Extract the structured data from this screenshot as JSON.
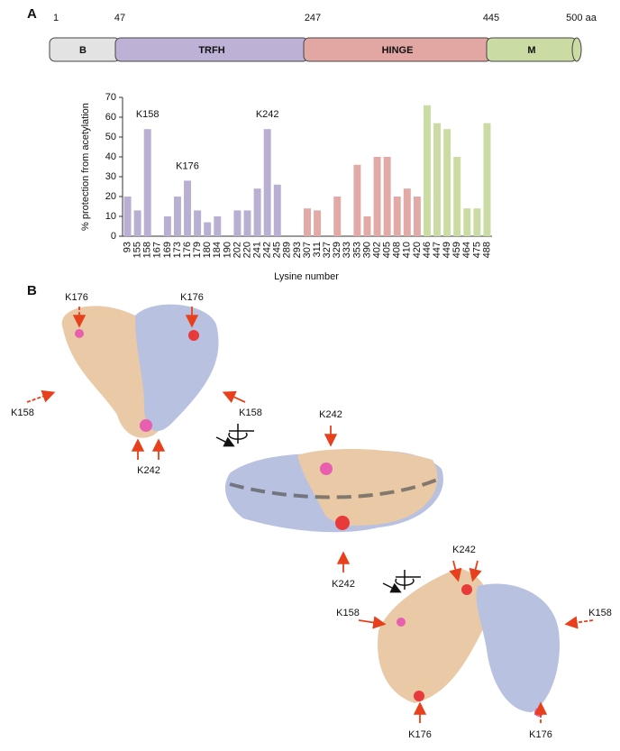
{
  "chart_data": {
    "type": "bar",
    "y_label": "% protection from acetylation",
    "x_label": "Lysine number",
    "categories": [
      "93",
      "155",
      "158",
      "167",
      "169",
      "173",
      "176",
      "179",
      "180",
      "184",
      "190",
      "202",
      "220",
      "241",
      "242",
      "245",
      "289",
      "293",
      "307",
      "311",
      "327",
      "329",
      "333",
      "353",
      "390",
      "402",
      "405",
      "408",
      "410",
      "420",
      "446",
      "447",
      "449",
      "459",
      "464",
      "475",
      "488"
    ],
    "values": [
      20,
      13,
      54,
      0,
      10,
      20,
      28,
      13,
      7,
      10,
      0,
      13,
      13,
      24,
      54,
      26,
      0,
      0,
      14,
      13,
      0,
      20,
      0,
      36,
      10,
      40,
      40,
      20,
      24,
      20,
      66,
      57,
      54,
      40,
      14,
      14,
      57
    ],
    "colors": [
      "#b9afd3",
      "#b9afd3",
      "#b9afd3",
      "#b9afd3",
      "#b9afd3",
      "#b9afd3",
      "#b9afd3",
      "#b9afd3",
      "#b9afd3",
      "#b9afd3",
      "#b9afd3",
      "#b9afd3",
      "#b9afd3",
      "#b9afd3",
      "#b9afd3",
      "#b9afd3",
      "#e2aaa6",
      "#e2aaa6",
      "#e2aaa6",
      "#e2aaa6",
      "#e2aaa6",
      "#e2aaa6",
      "#e2aaa6",
      "#e2aaa6",
      "#e2aaa6",
      "#e2aaa6",
      "#e2aaa6",
      "#e2aaa6",
      "#e2aaa6",
      "#e2aaa6",
      "#cadca3",
      "#cadca3",
      "#cadca3",
      "#cadca3",
      "#cadca3",
      "#cadca3",
      "#cadca3"
    ],
    "annotations": [
      {
        "text": "K158",
        "category": "158"
      },
      {
        "text": "K176",
        "category": "176"
      },
      {
        "text": "K242",
        "category": "242"
      }
    ],
    "ylim": [
      0,
      70
    ],
    "yticks": [
      0,
      10,
      20,
      30,
      40,
      50,
      60,
      70
    ],
    "grid": false
  },
  "figure": {
    "panel_a": "A",
    "panel_b": "B",
    "domain_ticks": [
      "1",
      "47",
      "247",
      "445",
      "500 aa"
    ],
    "domains": [
      "B",
      "TRFH",
      "HINGE",
      "M"
    ],
    "structure_labels": [
      "K176",
      "K176",
      "K158",
      "K158",
      "K242",
      "K242",
      "K242",
      "K242",
      "K158",
      "K158",
      "K176",
      "K176"
    ]
  }
}
